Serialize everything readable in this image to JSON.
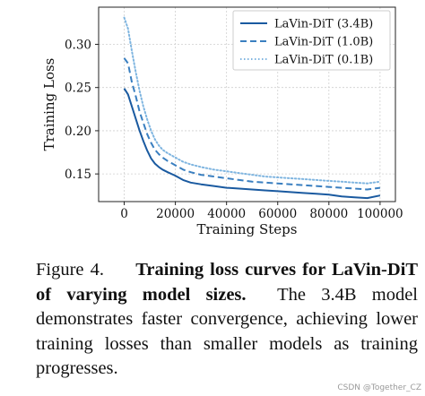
{
  "chart_data": {
    "type": "line",
    "title": "",
    "xlabel": "Training Steps",
    "ylabel": "Training Loss",
    "xlim": [
      -10000,
      106000
    ],
    "ylim": [
      0.118,
      0.343
    ],
    "xticks": [
      {
        "value": 20000,
        "label": "20000"
      },
      {
        "value": 40000,
        "label": "40000"
      },
      {
        "value": 60000,
        "label": "60000"
      },
      {
        "value": 80000,
        "label": "80000"
      },
      {
        "value": 100000,
        "label": "100000"
      }
    ],
    "yticks": [
      {
        "value": 0.15,
        "label": "0.15"
      },
      {
        "value": 0.2,
        "label": "0.20"
      },
      {
        "value": 0.25,
        "label": "0.25"
      },
      {
        "value": 0.3,
        "label": "0.30"
      }
    ],
    "extra_xtick": 0,
    "extra_xtick_label": "0",
    "grid": true,
    "legend_position": "upper right",
    "series": [
      {
        "name": "LaVin-DiT (3.4B)",
        "color": "#1a5aa0",
        "style": "solid",
        "x": [
          0,
          1500,
          3000,
          4500,
          6000,
          7500,
          9000,
          10500,
          12000,
          13500,
          15000,
          17000,
          20000,
          23000,
          26000,
          30000,
          35000,
          40000,
          45000,
          50000,
          55000,
          60000,
          65000,
          70000,
          75000,
          80000,
          85000,
          90000,
          95000,
          100000
        ],
        "y": [
          0.249,
          0.242,
          0.228,
          0.214,
          0.2,
          0.188,
          0.177,
          0.168,
          0.162,
          0.158,
          0.155,
          0.152,
          0.148,
          0.143,
          0.14,
          0.138,
          0.136,
          0.134,
          0.133,
          0.132,
          0.131,
          0.13,
          0.129,
          0.128,
          0.127,
          0.126,
          0.124,
          0.123,
          0.122,
          0.125
        ]
      },
      {
        "name": "LaVin-DiT (1.0B)",
        "color": "#3a7fc0",
        "style": "dashed",
        "x": [
          0,
          1500,
          3000,
          4500,
          6000,
          7500,
          9000,
          10500,
          12000,
          13500,
          15000,
          17000,
          20000,
          23000,
          26000,
          30000,
          35000,
          40000,
          45000,
          50000,
          55000,
          60000,
          65000,
          70000,
          75000,
          80000,
          85000,
          90000,
          95000,
          100000
        ],
        "y": [
          0.284,
          0.278,
          0.256,
          0.24,
          0.222,
          0.209,
          0.196,
          0.186,
          0.178,
          0.173,
          0.169,
          0.165,
          0.16,
          0.155,
          0.152,
          0.149,
          0.147,
          0.145,
          0.143,
          0.141,
          0.14,
          0.139,
          0.138,
          0.137,
          0.136,
          0.135,
          0.134,
          0.133,
          0.132,
          0.134
        ]
      },
      {
        "name": "LaVin-DiT (0.1B)",
        "color": "#7fb5e0",
        "style": "dotted",
        "x": [
          0,
          1500,
          3000,
          4500,
          6000,
          7500,
          9000,
          10500,
          12000,
          13500,
          15000,
          17000,
          20000,
          23000,
          26000,
          30000,
          35000,
          40000,
          45000,
          50000,
          55000,
          60000,
          65000,
          70000,
          75000,
          80000,
          85000,
          90000,
          95000,
          100000
        ],
        "y": [
          0.331,
          0.318,
          0.292,
          0.268,
          0.246,
          0.228,
          0.213,
          0.2,
          0.19,
          0.183,
          0.178,
          0.174,
          0.169,
          0.164,
          0.161,
          0.158,
          0.155,
          0.153,
          0.151,
          0.149,
          0.147,
          0.146,
          0.145,
          0.144,
          0.143,
          0.142,
          0.141,
          0.14,
          0.139,
          0.141
        ]
      }
    ]
  },
  "caption": {
    "prefix": "Figure 4.",
    "bold": "Training loss curves for LaVin-DiT of varying model sizes.",
    "rest": "The 3.4B model demonstrates faster convergence, achieving lower training losses than smaller models as training progresses."
  },
  "watermark": "CSDN @Together_CZ"
}
